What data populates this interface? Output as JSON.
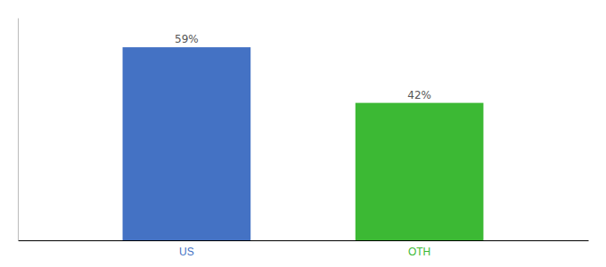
{
  "chart_data": {
    "type": "bar",
    "categories": [
      "US",
      "OTH"
    ],
    "values": [
      59,
      42
    ],
    "value_labels": [
      "59%",
      "42%"
    ],
    "colors": [
      "#4472C4",
      "#3CB934"
    ],
    "ylim": [
      0,
      68
    ],
    "data_labels": true,
    "tick_labels": "x",
    "grid": false
  }
}
